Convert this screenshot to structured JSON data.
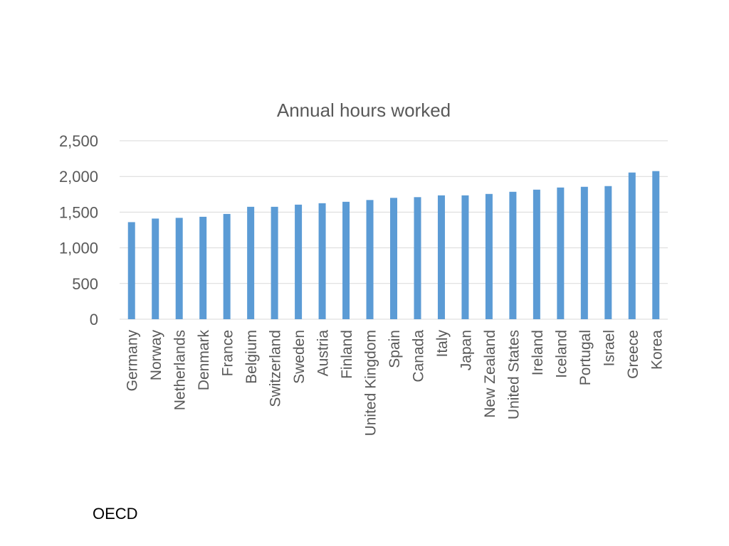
{
  "source_note": "OECD",
  "colors": {
    "bar": "#5b9bd5",
    "grid": "#d9d9d9",
    "axis": "#d9d9d9",
    "text": "#595959",
    "title": "#595959"
  },
  "chart_data": {
    "type": "bar",
    "title": "Annual hours worked",
    "xlabel": "",
    "ylabel": "",
    "ylim": [
      0,
      2500
    ],
    "yticks": [
      0,
      500,
      1000,
      1500,
      2000,
      2500
    ],
    "ytick_labels": [
      "0",
      "500",
      "1,000",
      "1,500",
      "2,000",
      "2,500"
    ],
    "grid": true,
    "legend": "none",
    "categories": [
      "Germany",
      "Norway",
      "Netherlands",
      "Denmark",
      "France",
      "Belgium",
      "Switzerland",
      "Sweden",
      "Austria",
      "Finland",
      "United Kingdom",
      "Spain",
      "Canada",
      "Italy",
      "Japan",
      "New Zealand",
      "United States",
      "Ireland",
      "Iceland",
      "Portugal",
      "Israel",
      "Greece",
      "Korea"
    ],
    "values": [
      1360,
      1410,
      1420,
      1435,
      1475,
      1575,
      1575,
      1605,
      1625,
      1645,
      1670,
      1700,
      1710,
      1735,
      1735,
      1755,
      1785,
      1815,
      1845,
      1855,
      1865,
      2055,
      2075
    ]
  }
}
